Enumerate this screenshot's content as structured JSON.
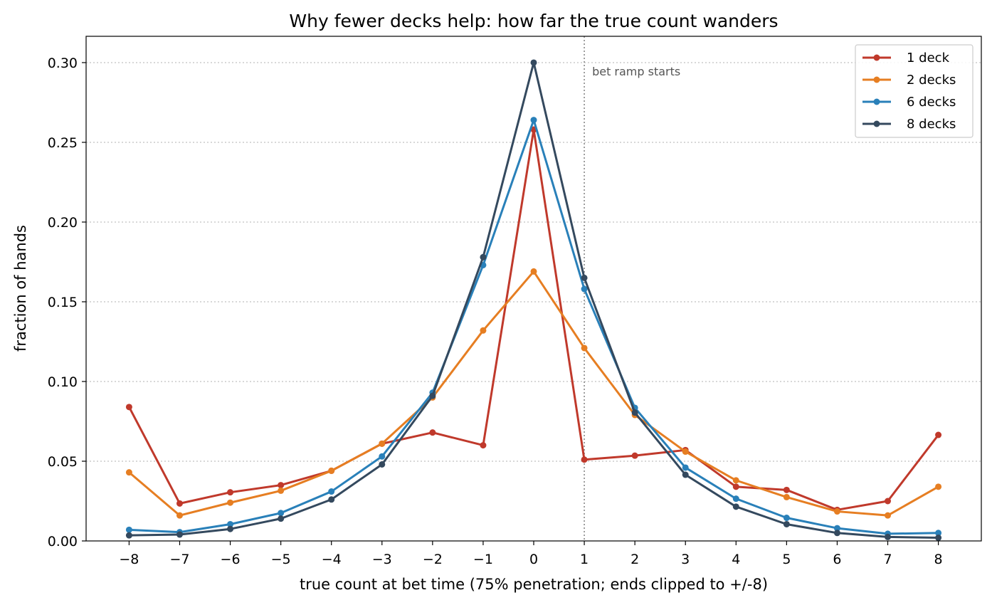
{
  "chart_data": {
    "type": "line",
    "title": "Why fewer decks help: how far the true count wanders",
    "xlabel": "true count at bet time (75% penetration; ends clipped to +/-8)",
    "ylabel": "fraction of hands",
    "x": [
      -8,
      -7,
      -6,
      -5,
      -4,
      -3,
      -2,
      -1,
      0,
      1,
      2,
      3,
      4,
      5,
      6,
      7,
      8
    ],
    "x_tick_labels": [
      "−8",
      "−7",
      "−6",
      "−5",
      "−4",
      "−3",
      "−2",
      "−1",
      "0",
      "1",
      "2",
      "3",
      "4",
      "5",
      "6",
      "7",
      "8"
    ],
    "y_ticks": [
      0.0,
      0.05,
      0.1,
      0.15,
      0.2,
      0.25,
      0.3
    ],
    "y_tick_labels": [
      "0.00",
      "0.05",
      "0.10",
      "0.15",
      "0.20",
      "0.25",
      "0.30"
    ],
    "xlim": [
      -8.85,
      8.85
    ],
    "ylim": [
      0,
      0.3165
    ],
    "grid": "horizontal dotted",
    "legend_position": "top-right",
    "series": [
      {
        "name": "1 deck",
        "color": "#c0392b",
        "values": [
          0.084,
          0.0235,
          0.0305,
          0.035,
          0.044,
          0.061,
          0.068,
          0.06,
          0.258,
          0.051,
          0.0535,
          0.057,
          0.034,
          0.032,
          0.0195,
          0.025,
          0.0665
        ]
      },
      {
        "name": "2 decks",
        "color": "#e67e22",
        "values": [
          0.043,
          0.016,
          0.024,
          0.0315,
          0.044,
          0.061,
          0.09,
          0.132,
          0.169,
          0.121,
          0.079,
          0.056,
          0.038,
          0.0275,
          0.0185,
          0.016,
          0.034
        ]
      },
      {
        "name": "6 decks",
        "color": "#2980b9",
        "values": [
          0.007,
          0.0055,
          0.0105,
          0.0175,
          0.031,
          0.053,
          0.093,
          0.173,
          0.264,
          0.158,
          0.0835,
          0.046,
          0.0265,
          0.0145,
          0.008,
          0.0045,
          0.005
        ]
      },
      {
        "name": "8 decks",
        "color": "#34495e",
        "values": [
          0.0035,
          0.004,
          0.0075,
          0.014,
          0.026,
          0.048,
          0.091,
          0.178,
          0.3,
          0.165,
          0.0805,
          0.0415,
          0.0215,
          0.0105,
          0.005,
          0.0025,
          0.002
        ]
      }
    ],
    "annotations": [
      {
        "text": "bet ramp starts",
        "x": 1,
        "style": "vertical dotted line"
      }
    ]
  }
}
